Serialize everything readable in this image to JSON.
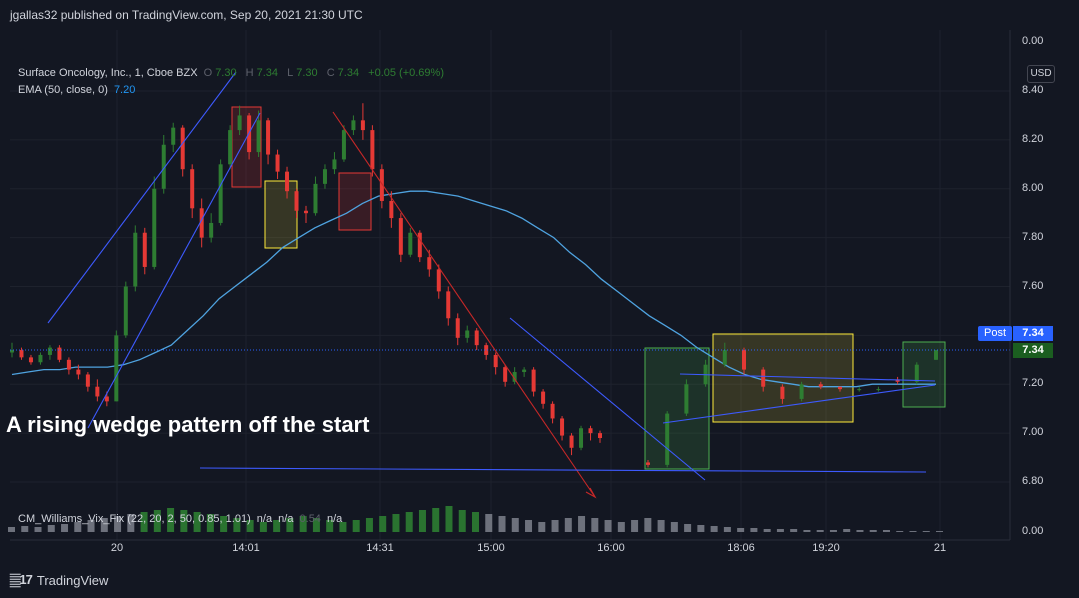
{
  "header": {
    "publish_line": "jgallas32 published on TradingView.com, Sep 20, 2021 21:30 UTC"
  },
  "footer": {
    "logo_text": "TradingView",
    "logo_icon": "tradingview-logo-icon"
  },
  "legend": {
    "symbol": "Surface Oncology, Inc., 1, Cboe BZX",
    "o_label": "O",
    "o_value": "7.30",
    "h_label": "H",
    "h_value": "7.34",
    "l_label": "L",
    "l_value": "7.30",
    "c_label": "C",
    "c_value": "7.34",
    "change": "+0.05 (+0.69%)",
    "ema_label": "EMA (50, close, 0)",
    "ema_value": "7.20",
    "vix_label": "CM_Williams_Vix_Fix (22, 20, 2, 50, 0.85, 1.01)",
    "vix_na1": "n/a",
    "vix_na2": "n/a",
    "vix_value": "0.54",
    "vix_na3": "n/a"
  },
  "annotation": "A rising wedge pattern off the start",
  "badges": {
    "currency": "USD",
    "post_label": "Post",
    "post_price": "7.34",
    "last_price": "7.34"
  },
  "colors": {
    "background": "#131722",
    "up": "#2e7d32",
    "down": "#e53935",
    "ema": "#4fa3e0",
    "trendline": "#3d5afe",
    "red_line": "#c62828"
  },
  "chart_data": {
    "type": "candlestick",
    "symbol": "Surface Oncology, Inc.",
    "interval": "1",
    "exchange": "Cboe BZX",
    "currency": "USD",
    "ylim": [
      6.7,
      8.45
    ],
    "y_ticks": [
      "8.40",
      "8.20",
      "8.00",
      "7.80",
      "7.60",
      "7.40",
      "7.20",
      "7.00",
      "6.80"
    ],
    "x_ticks": [
      "20",
      "14:01",
      "14:31",
      "15:00",
      "16:00",
      "18:06",
      "19:20",
      "21"
    ],
    "candles": [
      {
        "o": 7.33,
        "h": 7.37,
        "l": 7.31,
        "c": 7.34
      },
      {
        "o": 7.34,
        "h": 7.35,
        "l": 7.3,
        "c": 7.31
      },
      {
        "o": 7.31,
        "h": 7.32,
        "l": 7.28,
        "c": 7.29
      },
      {
        "o": 7.29,
        "h": 7.33,
        "l": 7.28,
        "c": 7.32
      },
      {
        "o": 7.32,
        "h": 7.36,
        "l": 7.3,
        "c": 7.35
      },
      {
        "o": 7.35,
        "h": 7.36,
        "l": 7.29,
        "c": 7.3
      },
      {
        "o": 7.3,
        "h": 7.31,
        "l": 7.24,
        "c": 7.26
      },
      {
        "o": 7.26,
        "h": 7.28,
        "l": 7.22,
        "c": 7.24
      },
      {
        "o": 7.24,
        "h": 7.25,
        "l": 7.17,
        "c": 7.19
      },
      {
        "o": 7.19,
        "h": 7.22,
        "l": 7.13,
        "c": 7.15
      },
      {
        "o": 7.15,
        "h": 7.17,
        "l": 7.11,
        "c": 7.13
      },
      {
        "o": 7.13,
        "h": 7.42,
        "l": 7.13,
        "c": 7.4
      },
      {
        "o": 7.4,
        "h": 7.62,
        "l": 7.39,
        "c": 7.6
      },
      {
        "o": 7.6,
        "h": 7.85,
        "l": 7.58,
        "c": 7.82
      },
      {
        "o": 7.82,
        "h": 7.84,
        "l": 7.65,
        "c": 7.68
      },
      {
        "o": 7.68,
        "h": 8.05,
        "l": 7.67,
        "c": 8.0
      },
      {
        "o": 8.0,
        "h": 8.22,
        "l": 7.98,
        "c": 8.18
      },
      {
        "o": 8.18,
        "h": 8.27,
        "l": 8.15,
        "c": 8.25
      },
      {
        "o": 8.25,
        "h": 8.26,
        "l": 8.05,
        "c": 8.08
      },
      {
        "o": 8.08,
        "h": 8.1,
        "l": 7.88,
        "c": 7.92
      },
      {
        "o": 7.92,
        "h": 7.96,
        "l": 7.76,
        "c": 7.8
      },
      {
        "o": 7.8,
        "h": 7.9,
        "l": 7.78,
        "c": 7.86
      },
      {
        "o": 7.86,
        "h": 8.12,
        "l": 7.85,
        "c": 8.1
      },
      {
        "o": 8.1,
        "h": 8.26,
        "l": 8.08,
        "c": 8.24
      },
      {
        "o": 8.24,
        "h": 8.34,
        "l": 8.22,
        "c": 8.3
      },
      {
        "o": 8.3,
        "h": 8.31,
        "l": 8.12,
        "c": 8.15
      },
      {
        "o": 8.15,
        "h": 8.32,
        "l": 8.13,
        "c": 8.28
      },
      {
        "o": 8.28,
        "h": 8.29,
        "l": 8.1,
        "c": 8.14
      },
      {
        "o": 8.14,
        "h": 8.16,
        "l": 8.04,
        "c": 8.07
      },
      {
        "o": 8.07,
        "h": 8.09,
        "l": 7.96,
        "c": 7.99
      },
      {
        "o": 7.99,
        "h": 8.0,
        "l": 7.88,
        "c": 7.91
      },
      {
        "o": 7.91,
        "h": 7.93,
        "l": 7.86,
        "c": 7.9
      },
      {
        "o": 7.9,
        "h": 8.05,
        "l": 7.89,
        "c": 8.02
      },
      {
        "o": 8.02,
        "h": 8.1,
        "l": 8.0,
        "c": 8.08
      },
      {
        "o": 8.08,
        "h": 8.15,
        "l": 8.06,
        "c": 8.12
      },
      {
        "o": 8.12,
        "h": 8.26,
        "l": 8.11,
        "c": 8.24
      },
      {
        "o": 8.24,
        "h": 8.3,
        "l": 8.22,
        "c": 8.28
      },
      {
        "o": 8.28,
        "h": 8.35,
        "l": 8.2,
        "c": 8.24
      },
      {
        "o": 8.24,
        "h": 8.26,
        "l": 8.05,
        "c": 8.08
      },
      {
        "o": 8.08,
        "h": 8.1,
        "l": 7.92,
        "c": 7.95
      },
      {
        "o": 7.95,
        "h": 7.99,
        "l": 7.84,
        "c": 7.88
      },
      {
        "o": 7.88,
        "h": 7.9,
        "l": 7.7,
        "c": 7.73
      },
      {
        "o": 7.73,
        "h": 7.84,
        "l": 7.72,
        "c": 7.82
      },
      {
        "o": 7.82,
        "h": 7.83,
        "l": 7.7,
        "c": 7.72
      },
      {
        "o": 7.72,
        "h": 7.75,
        "l": 7.64,
        "c": 7.67
      },
      {
        "o": 7.67,
        "h": 7.69,
        "l": 7.55,
        "c": 7.58
      },
      {
        "o": 7.58,
        "h": 7.6,
        "l": 7.44,
        "c": 7.47
      },
      {
        "o": 7.47,
        "h": 7.49,
        "l": 7.36,
        "c": 7.39
      },
      {
        "o": 7.39,
        "h": 7.44,
        "l": 7.37,
        "c": 7.42
      },
      {
        "o": 7.42,
        "h": 7.43,
        "l": 7.34,
        "c": 7.36
      },
      {
        "o": 7.36,
        "h": 7.37,
        "l": 7.3,
        "c": 7.32
      },
      {
        "o": 7.32,
        "h": 7.33,
        "l": 7.24,
        "c": 7.27
      },
      {
        "o": 7.27,
        "h": 7.28,
        "l": 7.19,
        "c": 7.21
      },
      {
        "o": 7.21,
        "h": 7.27,
        "l": 7.2,
        "c": 7.25
      },
      {
        "o": 7.25,
        "h": 7.27,
        "l": 7.23,
        "c": 7.26
      },
      {
        "o": 7.26,
        "h": 7.27,
        "l": 7.15,
        "c": 7.17
      },
      {
        "o": 7.17,
        "h": 7.18,
        "l": 7.1,
        "c": 7.12
      },
      {
        "o": 7.12,
        "h": 7.13,
        "l": 7.04,
        "c": 7.06
      },
      {
        "o": 7.06,
        "h": 7.07,
        "l": 6.97,
        "c": 6.99
      },
      {
        "o": 6.99,
        "h": 7.0,
        "l": 6.91,
        "c": 6.94
      },
      {
        "o": 6.94,
        "h": 7.03,
        "l": 6.93,
        "c": 7.02
      },
      {
        "o": 7.02,
        "h": 7.03,
        "l": 6.97,
        "c": 7.0
      },
      {
        "o": 7.0,
        "h": 7.01,
        "l": 6.96,
        "c": 6.98
      },
      {
        "o": 6.88,
        "h": 6.89,
        "l": 6.86,
        "c": 6.87
      },
      {
        "o": 6.87,
        "h": 7.09,
        "l": 6.86,
        "c": 7.08
      },
      {
        "o": 7.08,
        "h": 7.22,
        "l": 7.07,
        "c": 7.2
      },
      {
        "o": 7.2,
        "h": 7.3,
        "l": 7.19,
        "c": 7.28
      },
      {
        "o": 7.28,
        "h": 7.37,
        "l": 7.27,
        "c": 7.34
      },
      {
        "o": 7.34,
        "h": 7.35,
        "l": 7.24,
        "c": 7.26
      },
      {
        "o": 7.26,
        "h": 7.27,
        "l": 7.17,
        "c": 7.19
      },
      {
        "o": 7.19,
        "h": 7.2,
        "l": 7.12,
        "c": 7.14
      },
      {
        "o": 7.14,
        "h": 7.21,
        "l": 7.13,
        "c": 7.2
      },
      {
        "o": 7.2,
        "h": 7.21,
        "l": 7.18,
        "c": 7.19
      },
      {
        "o": 7.19,
        "h": 7.19,
        "l": 7.17,
        "c": 7.18
      },
      {
        "o": 7.18,
        "h": 7.19,
        "l": 7.17,
        "c": 7.18
      },
      {
        "o": 7.18,
        "h": 7.19,
        "l": 7.17,
        "c": 7.18
      },
      {
        "o": 7.22,
        "h": 7.23,
        "l": 7.2,
        "c": 7.21
      },
      {
        "o": 7.21,
        "h": 7.29,
        "l": 7.2,
        "c": 7.28
      },
      {
        "o": 7.3,
        "h": 7.34,
        "l": 7.3,
        "c": 7.34
      }
    ],
    "ema": [
      7.24,
      7.25,
      7.26,
      7.26,
      7.27,
      7.27,
      7.27,
      7.28,
      7.3,
      7.33,
      7.36,
      7.42,
      7.48,
      7.55,
      7.6,
      7.65,
      7.7,
      7.76,
      7.8,
      7.84,
      7.87,
      7.9,
      7.94,
      7.97,
      7.98,
      7.99,
      7.99,
      7.98,
      7.97,
      7.95,
      7.93,
      7.91,
      7.88,
      7.84,
      7.8,
      7.74,
      7.69,
      7.63,
      7.58,
      7.53,
      7.48,
      7.44,
      7.4,
      7.35,
      7.31,
      7.27,
      7.24,
      7.22,
      7.21,
      7.2,
      7.19,
      7.19,
      7.19,
      7.19,
      7.2,
      7.2,
      7.2,
      7.2,
      7.2
    ],
    "vix_fix": [
      0.05,
      0.06,
      0.05,
      0.07,
      0.08,
      0.1,
      0.12,
      0.14,
      0.16,
      0.18,
      0.2,
      0.22,
      0.24,
      0.22,
      0.2,
      0.18,
      0.16,
      0.14,
      0.12,
      0.1,
      0.12,
      0.14,
      0.16,
      0.14,
      0.12,
      0.1,
      0.12,
      0.14,
      0.16,
      0.18,
      0.2,
      0.22,
      0.24,
      0.26,
      0.22,
      0.2,
      0.18,
      0.16,
      0.14,
      0.12,
      0.1,
      0.12,
      0.14,
      0.16,
      0.14,
      0.12,
      0.1,
      0.12,
      0.14,
      0.12,
      0.1,
      0.08,
      0.07,
      0.06,
      0.05,
      0.04,
      0.04,
      0.03,
      0.03,
      0.03,
      0.02,
      0.02,
      0.02,
      0.03,
      0.02,
      0.02,
      0.02,
      0.01,
      0.01,
      0.01,
      0.01
    ],
    "vix_ylim": [
      0,
      0.3
    ],
    "vix_tick": "0.00"
  }
}
